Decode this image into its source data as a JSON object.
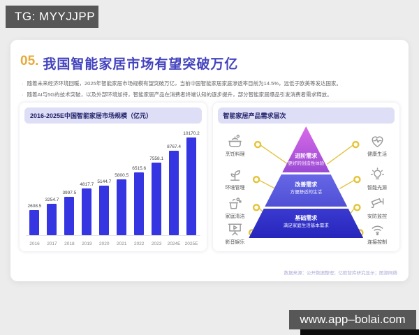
{
  "telegram_badge": "TG: MYYJJPP",
  "website_badge": "www.app–bolai.com",
  "header": {
    "number": "05.",
    "title": "我国智能家居市场有望突破万亿"
  },
  "bullets": [
    "随着未来经济环境回暖，2025年智能家居市场规模有望突破万亿，当前中国智能家居家庭渗透率目前为14.5%，远低于欧美等发达国家。",
    "随着AI与5G的技术突破，以及外部环境加持，智能家居产品在消费者终端认知的逐步提升，部分智能家居爆品引发消费者需求释放。"
  ],
  "chart_panel": {
    "title": "2016-2025E中国智能家居市场规模（亿元）"
  },
  "chart_data": {
    "type": "bar",
    "title": "2016-2025E中国智能家居市场规模（亿元）",
    "categories": [
      "2016",
      "2017",
      "2018",
      "2019",
      "2020",
      "2021",
      "2022",
      "2023",
      "2024E",
      "2025E"
    ],
    "values": [
      2608.5,
      3254.7,
      3997.5,
      4817.7,
      5144.7,
      5800.5,
      6515.6,
      7558.1,
      8767.4,
      10170.2
    ],
    "xlabel": "",
    "ylabel": "亿元",
    "ylim": [
      0,
      10500
    ],
    "bar_color": "#3535e2",
    "grid": false,
    "legend": "none"
  },
  "pyramid_panel": {
    "title": "智能家居产品需求层次",
    "tiers": [
      {
        "name": "进阶需求",
        "desc": "更好的创造性体验"
      },
      {
        "name": "改善需求",
        "desc": "方便舒适的生活"
      },
      {
        "name": "基础需求",
        "desc": "满足家庭生活基本需求"
      }
    ],
    "left_items": [
      {
        "icon": "cooking-icon",
        "label": "烹饪料理"
      },
      {
        "icon": "environment-icon",
        "label": "环境管理"
      },
      {
        "icon": "cleaning-icon",
        "label": "家庭清洁"
      },
      {
        "icon": "entertainment-icon",
        "label": "影音娱乐"
      }
    ],
    "right_items": [
      {
        "icon": "health-icon",
        "label": "健康生活"
      },
      {
        "icon": "light-icon",
        "label": "智能光源"
      },
      {
        "icon": "security-icon",
        "label": "安防监控"
      },
      {
        "icon": "wifi-icon",
        "label": "连接控制"
      }
    ]
  },
  "footer_note": "数据来源：公开数据整理；亿欧智库研究显示；图源网络",
  "colors": {
    "accent_number": "#e9aa3b",
    "title_blue": "#4343be",
    "bar_blue": "#3535e2",
    "pill_bg": "#dedef6",
    "connector_yellow": "#e3c33c",
    "badge_gray": "#575757"
  }
}
